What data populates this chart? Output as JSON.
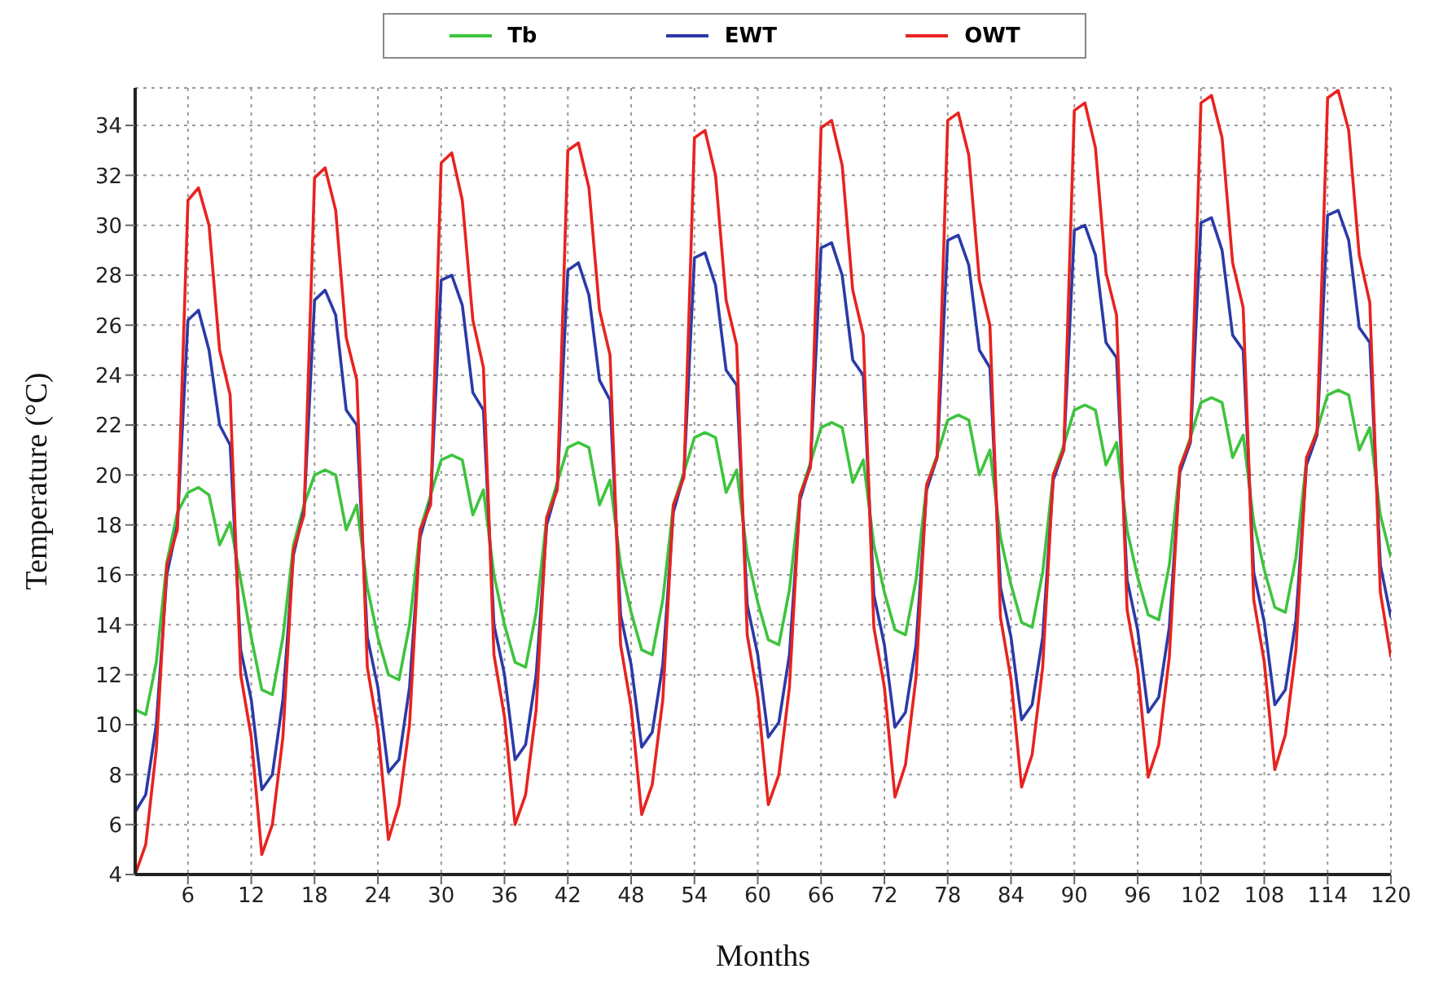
{
  "chart_data": {
    "type": "line",
    "xlabel": "Months",
    "ylabel": "Temperature  (°C)",
    "x": [
      1,
      2,
      3,
      4,
      5,
      6,
      7,
      8,
      9,
      10,
      11,
      12,
      13,
      14,
      15,
      16,
      17,
      18,
      19,
      20,
      21,
      22,
      23,
      24,
      25,
      26,
      27,
      28,
      29,
      30,
      31,
      32,
      33,
      34,
      35,
      36,
      37,
      38,
      39,
      40,
      41,
      42,
      43,
      44,
      45,
      46,
      47,
      48,
      49,
      50,
      51,
      52,
      53,
      54,
      55,
      56,
      57,
      58,
      59,
      60,
      61,
      62,
      63,
      64,
      65,
      66,
      67,
      68,
      69,
      70,
      71,
      72,
      73,
      74,
      75,
      76,
      77,
      78,
      79,
      80,
      81,
      82,
      83,
      84,
      85,
      86,
      87,
      88,
      89,
      90,
      91,
      92,
      93,
      94,
      95,
      96,
      97,
      98,
      99,
      100,
      101,
      102,
      103,
      104,
      105,
      106,
      107,
      108,
      109,
      110,
      111,
      112,
      113,
      114,
      115,
      116,
      117,
      118,
      119,
      120
    ],
    "series": [
      {
        "name": "Tb",
        "color": "#3dc43d",
        "values": [
          10.6,
          10.4,
          12.5,
          16.5,
          18.5,
          19.3,
          19.5,
          19.2,
          17.2,
          18.1,
          15.8,
          13.5,
          11.4,
          11.2,
          13.5,
          17.2,
          18.8,
          20.0,
          20.2,
          20.0,
          17.8,
          18.8,
          15.5,
          13.5,
          12.0,
          11.8,
          14.0,
          17.8,
          19.2,
          20.6,
          20.8,
          20.6,
          18.4,
          19.4,
          16.0,
          14.0,
          12.5,
          12.3,
          14.5,
          18.3,
          19.7,
          21.1,
          21.3,
          21.1,
          18.8,
          19.8,
          16.4,
          14.5,
          13.0,
          12.8,
          15.0,
          18.8,
          20.1,
          21.5,
          21.7,
          21.5,
          19.3,
          20.2,
          16.8,
          14.9,
          13.4,
          13.2,
          15.4,
          19.2,
          20.5,
          21.9,
          22.1,
          21.9,
          19.7,
          20.6,
          17.2,
          15.3,
          13.8,
          13.6,
          15.8,
          19.6,
          20.8,
          22.2,
          22.4,
          22.2,
          20.0,
          21.0,
          17.5,
          15.6,
          14.1,
          13.9,
          16.1,
          20.0,
          21.2,
          22.6,
          22.8,
          22.6,
          20.4,
          21.3,
          17.8,
          15.9,
          14.4,
          14.2,
          16.4,
          20.3,
          21.5,
          22.9,
          23.1,
          22.9,
          20.7,
          21.6,
          18.1,
          16.2,
          14.7,
          14.5,
          16.7,
          20.6,
          21.8,
          23.2,
          23.4,
          23.2,
          21.0,
          21.9,
          18.4,
          16.7
        ]
      },
      {
        "name": "EWT",
        "color": "#2b3aa8",
        "values": [
          6.5,
          7.2,
          10.0,
          16.0,
          18.0,
          26.2,
          26.6,
          25.0,
          22.0,
          21.2,
          13.0,
          11.0,
          7.4,
          8.0,
          11.0,
          16.8,
          18.6,
          27.0,
          27.4,
          26.4,
          22.6,
          22.0,
          13.5,
          11.5,
          8.1,
          8.6,
          11.5,
          17.5,
          19.0,
          27.8,
          28.0,
          26.8,
          23.3,
          22.6,
          14.0,
          12.0,
          8.6,
          9.2,
          12.0,
          18.0,
          19.5,
          28.2,
          28.5,
          27.2,
          23.8,
          23.0,
          14.4,
          12.4,
          9.1,
          9.7,
          12.4,
          18.5,
          20.0,
          28.7,
          28.9,
          27.6,
          24.2,
          23.6,
          14.8,
          12.8,
          9.5,
          10.1,
          12.8,
          19.0,
          20.4,
          29.1,
          29.3,
          28.0,
          24.6,
          24.0,
          15.2,
          13.2,
          9.9,
          10.5,
          13.2,
          19.4,
          20.7,
          29.4,
          29.6,
          28.4,
          25.0,
          24.3,
          15.5,
          13.5,
          10.2,
          10.8,
          13.5,
          19.8,
          21.0,
          29.8,
          30.0,
          28.8,
          25.3,
          24.7,
          15.8,
          13.8,
          10.5,
          11.1,
          13.9,
          20.1,
          21.3,
          30.1,
          30.3,
          29.0,
          25.6,
          25.0,
          16.1,
          14.1,
          10.8,
          11.4,
          14.2,
          20.4,
          21.6,
          30.4,
          30.6,
          29.4,
          25.9,
          25.3,
          16.4,
          14.3
        ]
      },
      {
        "name": "OWT",
        "color": "#e8231f",
        "values": [
          4.0,
          5.2,
          9.0,
          16.4,
          17.8,
          31.0,
          31.5,
          30.0,
          25.0,
          23.2,
          12.0,
          9.5,
          4.8,
          6.0,
          9.5,
          17.0,
          18.4,
          31.9,
          32.3,
          30.6,
          25.5,
          23.8,
          12.3,
          9.8,
          5.4,
          6.8,
          10.0,
          17.8,
          18.8,
          32.5,
          32.9,
          31.0,
          26.2,
          24.3,
          12.8,
          10.3,
          6.0,
          7.2,
          10.6,
          18.3,
          19.4,
          33.0,
          33.3,
          31.5,
          26.6,
          24.8,
          13.2,
          10.7,
          6.4,
          7.6,
          11.0,
          18.8,
          19.9,
          33.5,
          33.8,
          32.0,
          27.0,
          25.2,
          13.6,
          11.1,
          6.8,
          8.0,
          11.5,
          19.2,
          20.3,
          33.9,
          34.2,
          32.4,
          27.4,
          25.6,
          13.9,
          11.5,
          7.1,
          8.4,
          11.9,
          19.6,
          20.7,
          34.2,
          34.5,
          32.8,
          27.8,
          26.0,
          14.3,
          11.8,
          7.5,
          8.8,
          12.3,
          20.0,
          21.0,
          34.6,
          34.9,
          33.1,
          28.1,
          26.4,
          14.6,
          12.2,
          7.9,
          9.2,
          12.7,
          20.3,
          21.4,
          34.9,
          35.2,
          33.5,
          28.5,
          26.7,
          15.0,
          12.5,
          8.2,
          9.6,
          13.0,
          20.7,
          21.7,
          35.1,
          35.4,
          33.8,
          28.8,
          26.9,
          15.3,
          12.7
        ]
      }
    ],
    "xlim": [
      1,
      120
    ],
    "xticks": [
      6,
      12,
      18,
      24,
      30,
      36,
      42,
      48,
      54,
      60,
      66,
      72,
      78,
      84,
      90,
      96,
      102,
      108,
      114,
      120
    ],
    "ylim": [
      4,
      35.5
    ],
    "yticks": [
      4,
      6,
      8,
      10,
      12,
      14,
      16,
      18,
      20,
      22,
      24,
      26,
      28,
      30,
      32,
      34
    ],
    "grid": true,
    "legend": "top",
    "marker": "none",
    "line_style": "solid"
  }
}
